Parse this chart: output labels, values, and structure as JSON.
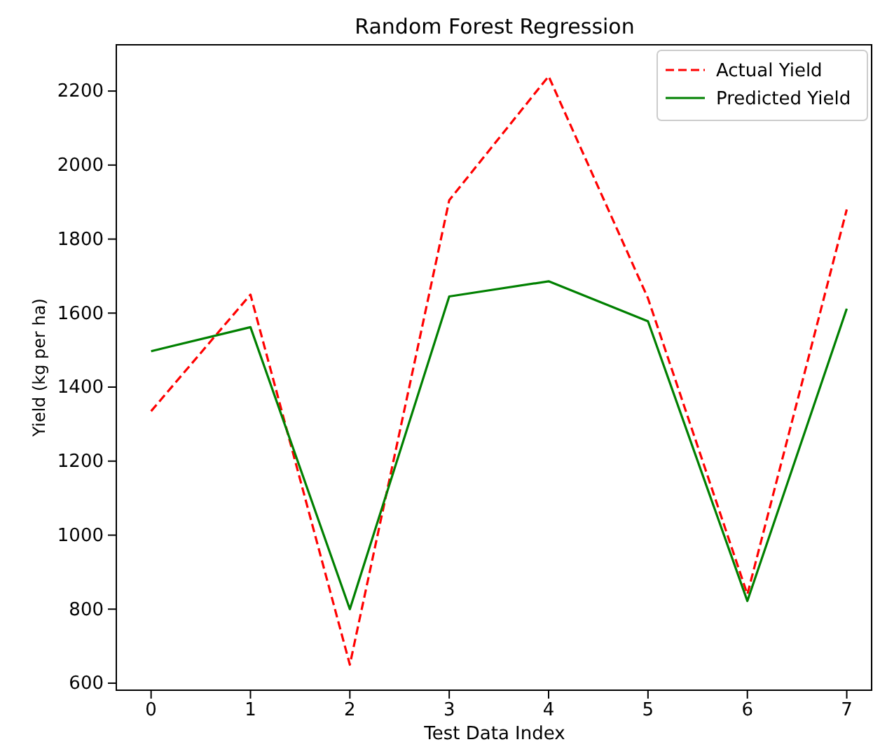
{
  "chart_data": {
    "type": "line",
    "title": "Random Forest Regression",
    "xlabel": "Test Data Index",
    "ylabel": "Yield (kg per ha)",
    "x": [
      0,
      1,
      2,
      3,
      4,
      5,
      6,
      7
    ],
    "series": [
      {
        "name": "Actual Yield",
        "color": "#ff0000",
        "line_style": "dashed",
        "values": [
          1335,
          1650,
          650,
          1905,
          2240,
          1640,
          840,
          1880
        ]
      },
      {
        "name": "Predicted Yield",
        "color": "#008000",
        "line_style": "solid",
        "values": [
          1497,
          1562,
          800,
          1645,
          1686,
          1578,
          822,
          1612
        ]
      }
    ],
    "xlim": [
      -0.35,
      7.25
    ],
    "xticks": [
      0,
      1,
      2,
      3,
      4,
      5,
      6,
      7
    ],
    "ylim": [
      581,
      2325
    ],
    "yticks": [
      600,
      800,
      1000,
      1200,
      1400,
      1600,
      1800,
      2000,
      2200
    ],
    "legend": "top right",
    "grid": false
  }
}
